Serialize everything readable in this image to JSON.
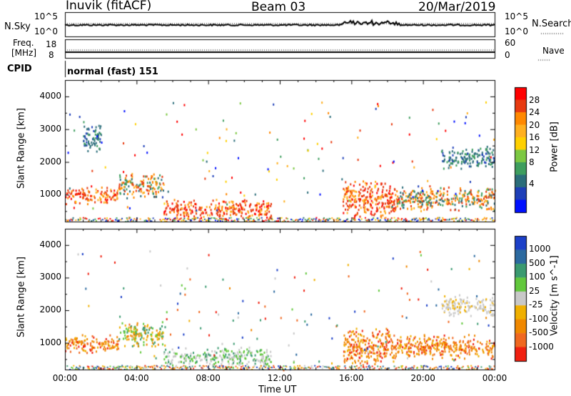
{
  "header": {
    "station": "Inuvik (fitACF)",
    "beam": "Beam 03",
    "date": "20/Mar/2019"
  },
  "panels": {
    "nsky_label": "N.Sky",
    "nsky_ticks": [
      "10^5",
      "10^0"
    ],
    "nsearch_label": "N.Search",
    "nsearch_ticks": [
      "10^5",
      "10^0"
    ],
    "freq_label_1": "Freq.",
    "freq_label_2": "[MHz]",
    "freq_ticks": [
      "18",
      "8"
    ],
    "nave_label": "Nave",
    "nave_ticks": [
      "60",
      "0"
    ],
    "cpid_label": "CPID",
    "cpid_value": "normal (fast) 151"
  },
  "colorbars": {
    "power": {
      "label": "Power [dB]",
      "ticks": [
        "28",
        "24",
        "20",
        "16",
        "12",
        "8",
        "4"
      ],
      "colors": [
        "#ff0000",
        "#e83a10",
        "#ff8800",
        "#ffb020",
        "#ffd000",
        "#7cc842",
        "#3e9e5e",
        "#2b6d7a",
        "#1e3fb8",
        "#0010ff"
      ]
    },
    "velocity": {
      "label": "Velocity [m s^-1]",
      "ticks": [
        "1000",
        "500",
        "100",
        "25",
        "-25",
        "-100",
        "-500",
        "-1000"
      ],
      "colors": [
        "#1c40c8",
        "#2c6aa0",
        "#3a9a70",
        "#62c83c",
        "#c8c8c8",
        "#f0b000",
        "#f08800",
        "#f06820",
        "#f02010"
      ]
    }
  },
  "chart_data": {
    "type": "heatmap",
    "xlabel": "Time UT",
    "x_ticks": [
      "00:00",
      "04:00",
      "08:00",
      "12:00",
      "16:00",
      "20:00",
      "00:00"
    ],
    "ylabel": "Slant Range [km]",
    "y_ticks": [
      1000,
      2000,
      3000,
      4000
    ],
    "ylim": [
      180,
      4500
    ],
    "xlim_hours": [
      0,
      24
    ],
    "power_regions": [
      {
        "t0": 0.0,
        "t1": 3.0,
        "r0": 700,
        "r1": 1300,
        "level": "high"
      },
      {
        "t0": 3.0,
        "t1": 5.5,
        "r0": 900,
        "r1": 1700,
        "level": "medium"
      },
      {
        "t0": 5.5,
        "t1": 11.5,
        "r0": 250,
        "r1": 900,
        "level": "high"
      },
      {
        "t0": 15.5,
        "t1": 18.5,
        "r0": 250,
        "r1": 1500,
        "level": "high"
      },
      {
        "t0": 18.5,
        "t1": 24.0,
        "r0": 500,
        "r1": 1300,
        "level": "medium"
      },
      {
        "t0": 21.0,
        "t1": 24.0,
        "r0": 1800,
        "r1": 2500,
        "level": "low"
      },
      {
        "t0": 1.0,
        "t1": 2.0,
        "r0": 2200,
        "r1": 3200,
        "level": "low"
      }
    ],
    "velocity_regions": [
      {
        "t0": 0.0,
        "t1": 3.0,
        "r0": 700,
        "r1": 1300,
        "sign": "negative"
      },
      {
        "t0": 3.0,
        "t1": 5.5,
        "r0": 900,
        "r1": 1700,
        "sign": "mixed"
      },
      {
        "t0": 5.5,
        "t1": 11.5,
        "r0": 250,
        "r1": 900,
        "sign": "positive"
      },
      {
        "t0": 15.5,
        "t1": 18.5,
        "r0": 250,
        "r1": 1500,
        "sign": "negative"
      },
      {
        "t0": 18.5,
        "t1": 24.0,
        "r0": 500,
        "r1": 1300,
        "sign": "negative"
      },
      {
        "t0": 21.0,
        "t1": 24.0,
        "r0": 1800,
        "r1": 2500,
        "sign": "near-zero"
      }
    ]
  }
}
